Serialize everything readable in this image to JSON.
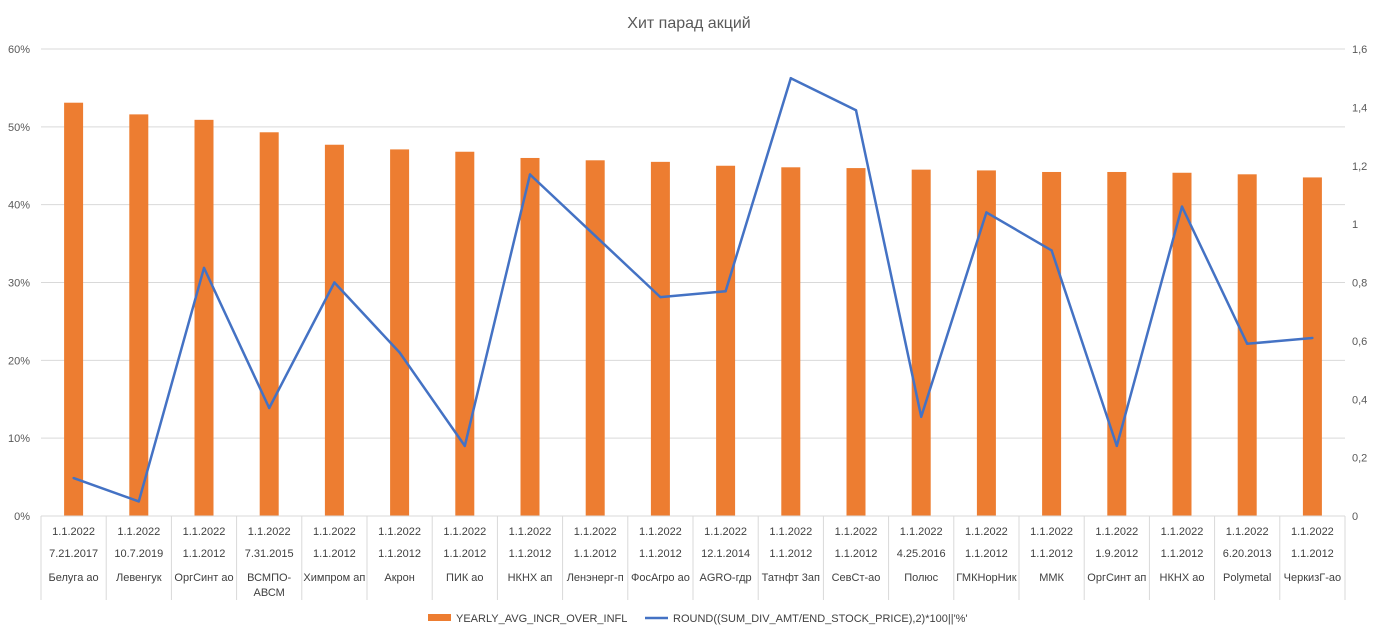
{
  "chart_data": {
    "type": "bar",
    "title": "Хит парад акций",
    "xlabel": "",
    "ylabel": "",
    "ylim": [
      0,
      60
    ],
    "y2lim": [
      0,
      1.6
    ],
    "y_ticks": [
      "0%",
      "10%",
      "20%",
      "30%",
      "40%",
      "50%",
      "60%"
    ],
    "y2_ticks": [
      "0",
      "0,2",
      "0,4",
      "0,6",
      "0,8",
      "1",
      "1,2",
      "1,4",
      "1,6"
    ],
    "grid": true,
    "legend_position": "bottom",
    "categories": [
      {
        "date1": "1.1.2022",
        "date2": "7.21.2017",
        "name": "Белуга ао"
      },
      {
        "date1": "1.1.2022",
        "date2": "10.7.2019",
        "name": "Левенгук"
      },
      {
        "date1": "1.1.2022",
        "date2": "1.1.2012",
        "name": "ОргСинт ао"
      },
      {
        "date1": "1.1.2022",
        "date2": "7.31.2015",
        "name": "ВСМПО-АВСМ"
      },
      {
        "date1": "1.1.2022",
        "date2": "1.1.2012",
        "name": "Химпром ап"
      },
      {
        "date1": "1.1.2022",
        "date2": "1.1.2012",
        "name": "Акрон"
      },
      {
        "date1": "1.1.2022",
        "date2": "1.1.2012",
        "name": "ПИК ао"
      },
      {
        "date1": "1.1.2022",
        "date2": "1.1.2012",
        "name": "НКНХ ап"
      },
      {
        "date1": "1.1.2022",
        "date2": "1.1.2012",
        "name": "Ленэнерг-п"
      },
      {
        "date1": "1.1.2022",
        "date2": "1.1.2012",
        "name": "ФосАгро ао"
      },
      {
        "date1": "1.1.2022",
        "date2": "12.1.2014",
        "name": "AGRO-гдр"
      },
      {
        "date1": "1.1.2022",
        "date2": "1.1.2012",
        "name": "Татнфт 3ап"
      },
      {
        "date1": "1.1.2022",
        "date2": "1.1.2012",
        "name": "СевСт-ао"
      },
      {
        "date1": "1.1.2022",
        "date2": "4.25.2016",
        "name": "Полюс"
      },
      {
        "date1": "1.1.2022",
        "date2": "1.1.2012",
        "name": "ГМКНорНик"
      },
      {
        "date1": "1.1.2022",
        "date2": "1.1.2012",
        "name": "ММК"
      },
      {
        "date1": "1.1.2022",
        "date2": "1.9.2012",
        "name": "ОргСинт ап"
      },
      {
        "date1": "1.1.2022",
        "date2": "1.1.2012",
        "name": "НКНХ ао"
      },
      {
        "date1": "1.1.2022",
        "date2": "6.20.2013",
        "name": "Polymetal"
      },
      {
        "date1": "1.1.2022",
        "date2": "1.1.2012",
        "name": "ЧеркизГ-ао"
      }
    ],
    "series": [
      {
        "name": "YEARLY_AVG_INCR_OVER_INFL",
        "type": "bar",
        "axis": "left",
        "unit": "%",
        "color": "#ED7D31",
        "values": [
          53.1,
          51.6,
          50.9,
          49.3,
          47.7,
          47.1,
          46.8,
          46.0,
          45.7,
          45.5,
          45.0,
          44.8,
          44.7,
          44.5,
          44.4,
          44.2,
          44.2,
          44.1,
          43.9,
          43.5
        ]
      },
      {
        "name": "ROUND((SUM_DIV_AMT/END_STOCK_PRICE),2)*100||'%'",
        "type": "line",
        "axis": "right",
        "color": "#4472C4",
        "values": [
          0.13,
          0.05,
          0.85,
          0.37,
          0.8,
          0.56,
          0.24,
          1.17,
          0.96,
          0.75,
          0.77,
          1.5,
          1.39,
          0.34,
          1.04,
          0.91,
          0.24,
          1.06,
          0.59,
          0.61
        ]
      }
    ]
  }
}
